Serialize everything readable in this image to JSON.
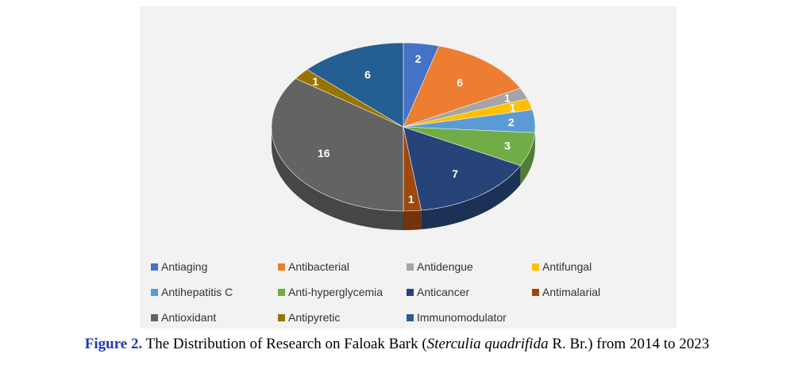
{
  "chart_data": {
    "type": "pie",
    "title": "",
    "categories": [
      "Antiaging",
      "Antibacterial",
      "Antidengue",
      "Antifungal",
      "Antihepatitis C",
      "Anti-hyperglycemia",
      "Anticancer",
      "Antimalarial",
      "Antioxidant",
      "Antipyretic",
      "Immunomodulator"
    ],
    "values": [
      2,
      6,
      1,
      1,
      2,
      3,
      7,
      1,
      16,
      1,
      6
    ],
    "colors": [
      "#4472c4",
      "#ed7d31",
      "#a5a5a5",
      "#ffc000",
      "#5b9bd5",
      "#70ad47",
      "#264478",
      "#9e480e",
      "#636363",
      "#997300",
      "#255e91"
    ],
    "legend_position": "bottom",
    "style": "3d-pie"
  },
  "caption": {
    "label": "Figure 2.",
    "text_before": " The Distribution of Research on Faloak Bark (",
    "species": "Sterculia quadrifida",
    "text_after": " R. Br.) from 2014 to 2023"
  }
}
